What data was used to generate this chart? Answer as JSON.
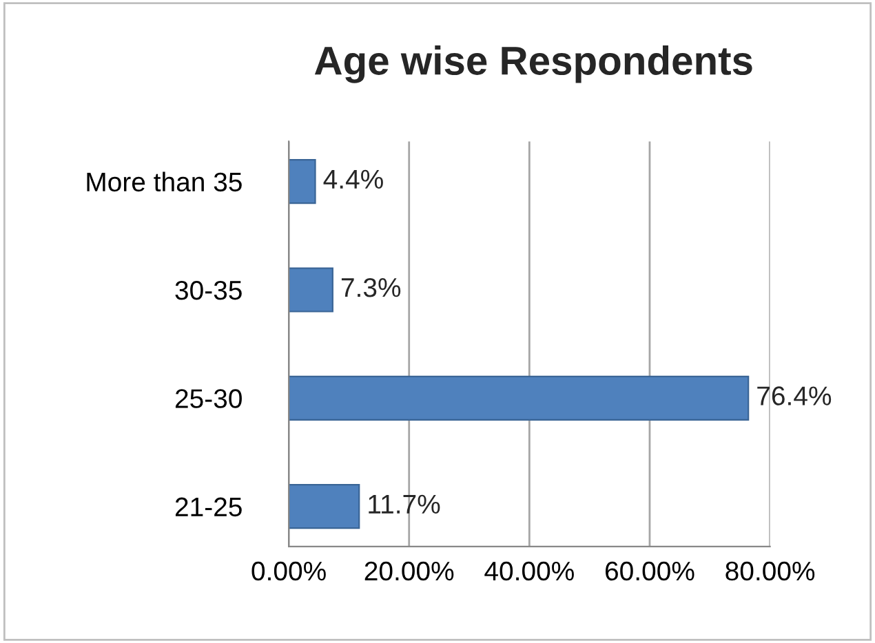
{
  "chart_data": {
    "type": "bar",
    "orientation": "horizontal",
    "title": "Age wise Respondents",
    "categories": [
      "More than 35",
      "30-35",
      "25-30",
      "21-25"
    ],
    "values": [
      4.4,
      7.3,
      76.4,
      11.7
    ],
    "value_labels": [
      "4.4%",
      "7.3%",
      "76.4%",
      "11.7%"
    ],
    "color": "#4f81bd",
    "xlim": [
      0,
      80
    ],
    "xticks": [
      {
        "value": 0,
        "label": "0.00%"
      },
      {
        "value": 20,
        "label": "20.00%"
      },
      {
        "value": 40,
        "label": "40.00%"
      },
      {
        "value": 60,
        "label": "60.00%"
      },
      {
        "value": 80,
        "label": "80.00%"
      }
    ],
    "grid": "x"
  }
}
